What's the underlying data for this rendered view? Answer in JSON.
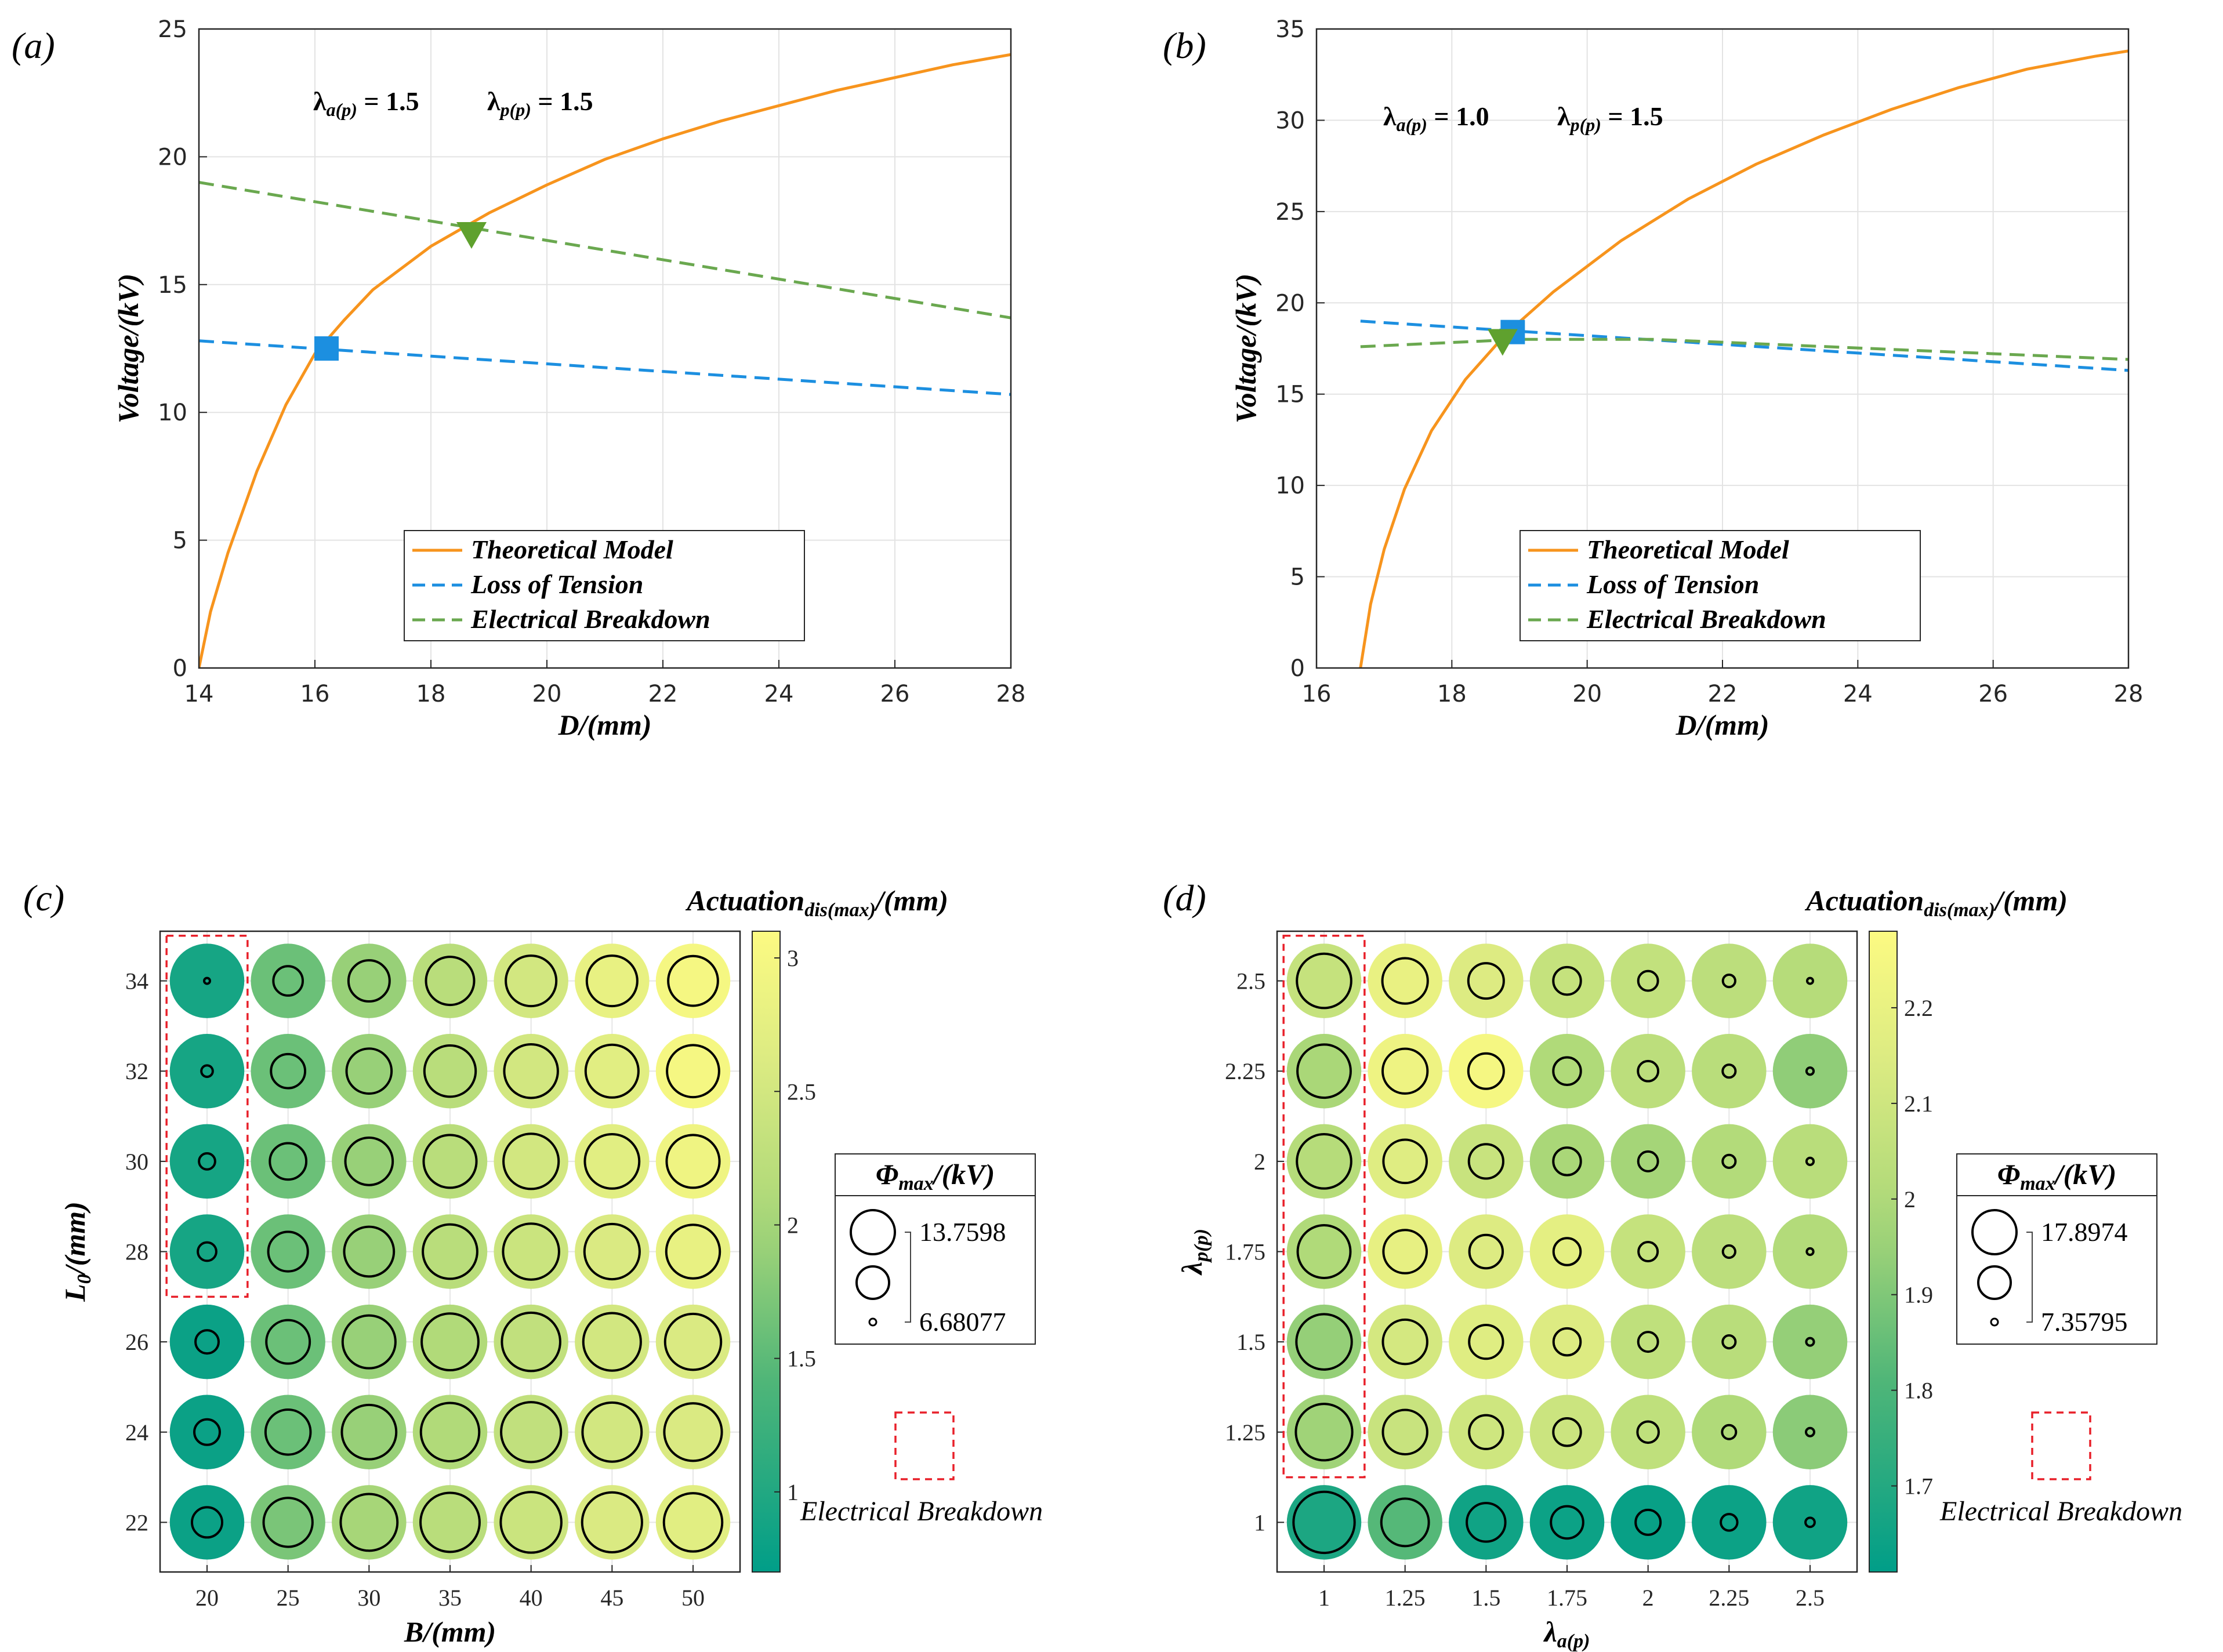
{
  "chart_data": [
    {
      "panel": "(a)",
      "type": "line",
      "xlabel": "D/(mm)",
      "ylabel": "Voltage/(kV)",
      "xlim": [
        14,
        28
      ],
      "ylim": [
        0,
        25
      ],
      "xticks": [
        "14",
        "16",
        "18",
        "20",
        "22",
        "24",
        "26",
        "28"
      ],
      "yticks": [
        "0",
        "5",
        "10",
        "15",
        "20",
        "25"
      ],
      "grid": true,
      "annotation": "λa(p) = 1.5   λp(p) = 1.5",
      "legend_position": "bottom-right",
      "series": [
        {
          "name": "Theoretical Model",
          "color": "#F7941D",
          "style": "solid",
          "x": [
            14.0,
            14.2,
            14.5,
            15.0,
            15.5,
            16.0,
            16.5,
            17.0,
            18.0,
            19.0,
            20.0,
            21.0,
            22.0,
            23.0,
            24.0,
            25.0,
            26.0,
            27.0,
            28.0
          ],
          "y": [
            0,
            2.2,
            4.5,
            7.7,
            10.3,
            12.3,
            13.6,
            14.8,
            16.5,
            17.8,
            18.9,
            19.9,
            20.7,
            21.4,
            22.0,
            22.6,
            23.1,
            23.6,
            24.0
          ]
        },
        {
          "name": "Loss of Tension",
          "color": "#1C8FE0",
          "style": "dashed",
          "x": [
            14,
            28
          ],
          "y": [
            12.8,
            10.7
          ]
        },
        {
          "name": "Electrical Breakdown",
          "color": "#6AA84F",
          "style": "dashed",
          "x": [
            14,
            28
          ],
          "y": [
            19.0,
            13.7
          ]
        }
      ],
      "markers": [
        {
          "shape": "square",
          "color": "#1C8FE0",
          "x": 16.2,
          "y": 12.5
        },
        {
          "shape": "triangle-down",
          "color": "#5FA12E",
          "x": 18.7,
          "y": 16.9
        }
      ]
    },
    {
      "panel": "(b)",
      "type": "line",
      "xlabel": "D/(mm)",
      "ylabel": "Voltage/(kV)",
      "xlim": [
        16,
        28
      ],
      "ylim": [
        0,
        35
      ],
      "xticks": [
        "16",
        "18",
        "20",
        "22",
        "24",
        "26",
        "28"
      ],
      "yticks": [
        "0",
        "5",
        "10",
        "15",
        "20",
        "25",
        "30",
        "35"
      ],
      "grid": true,
      "annotation": "λa(p) = 1.0   λp(p) = 1.5",
      "legend_position": "bottom-right",
      "series": [
        {
          "name": "Theoretical Model",
          "color": "#F7941D",
          "style": "solid",
          "x": [
            16.65,
            16.8,
            17.0,
            17.3,
            17.7,
            18.2,
            18.8,
            19.5,
            20.5,
            21.5,
            22.5,
            23.5,
            24.5,
            25.5,
            26.5,
            27.5,
            28.0
          ],
          "y": [
            0,
            3.5,
            6.5,
            9.8,
            13.0,
            15.8,
            18.3,
            20.6,
            23.4,
            25.7,
            27.6,
            29.2,
            30.6,
            31.8,
            32.8,
            33.5,
            33.8
          ]
        },
        {
          "name": "Loss of Tension",
          "color": "#1C8FE0",
          "style": "dashed",
          "x": [
            16.65,
            28
          ],
          "y": [
            19.0,
            16.3
          ]
        },
        {
          "name": "Electrical Breakdown",
          "color": "#6AA84F",
          "style": "dashed",
          "x": [
            16.65,
            19.0,
            21.0,
            28
          ],
          "y": [
            17.6,
            18.0,
            18.0,
            16.9
          ]
        }
      ],
      "markers": [
        {
          "shape": "square",
          "color": "#1C8FE0",
          "x": 18.9,
          "y": 18.4
        },
        {
          "shape": "triangle-down",
          "color": "#5FA12E",
          "x": 18.75,
          "y": 17.8
        }
      ]
    },
    {
      "panel": "(c)",
      "type": "scatter",
      "xlabel": "B/(mm)",
      "ylabel": "L0/(mm)",
      "x_categories": [
        "20",
        "25",
        "30",
        "35",
        "40",
        "45",
        "50"
      ],
      "y_categories": [
        "22",
        "24",
        "26",
        "28",
        "30",
        "32",
        "34"
      ],
      "colorbar_title": "Actuation_dis(max)/(mm)",
      "colorbar_range": [
        0.7,
        3.1
      ],
      "colorbar_ticks": [
        "1",
        "1.5",
        "2",
        "2.5",
        "3"
      ],
      "size_legend_title": "Φmax/(kV)",
      "size_legend_values": [
        "13.7598",
        "6.68077"
      ],
      "size_range": [
        6.68077,
        13.7598
      ],
      "breakdown_label": "Electrical Breakdown",
      "breakdown_column": "20",
      "breakdown_rows": [
        "28",
        "30",
        "32",
        "34"
      ],
      "color_values": [
        [
          0.8,
          1.7,
          2.0,
          2.2,
          2.4,
          2.6,
          2.7
        ],
        [
          0.8,
          1.6,
          1.9,
          2.1,
          2.3,
          2.5,
          2.6
        ],
        [
          0.8,
          1.6,
          1.9,
          2.1,
          2.3,
          2.5,
          2.6
        ],
        [
          0.9,
          1.6,
          1.9,
          2.2,
          2.4,
          2.6,
          2.8
        ],
        [
          0.9,
          1.6,
          1.9,
          2.2,
          2.5,
          2.7,
          2.9
        ],
        [
          0.9,
          1.6,
          1.9,
          2.2,
          2.5,
          2.7,
          3.0
        ],
        [
          0.9,
          1.6,
          1.9,
          2.2,
          2.5,
          2.8,
          3.0
        ]
      ],
      "voltage_values": [
        [
          9.8,
          12.2,
          13.2,
          13.5,
          13.7,
          13.6,
          13.4
        ],
        [
          9.2,
          11.7,
          12.9,
          13.4,
          13.6,
          13.5,
          13.3
        ],
        [
          8.9,
          11.5,
          12.7,
          13.2,
          13.4,
          13.3,
          13.1
        ],
        [
          8.3,
          11.0,
          12.3,
          12.9,
          13.1,
          13.0,
          12.8
        ],
        [
          8.0,
          10.6,
          12.0,
          12.7,
          13.0,
          12.9,
          12.7
        ],
        [
          7.4,
          10.3,
          11.7,
          12.5,
          12.8,
          12.7,
          12.6
        ],
        [
          6.68,
          9.7,
          11.2,
          12.1,
          12.4,
          12.4,
          12.3
        ]
      ]
    },
    {
      "panel": "(d)",
      "type": "scatter",
      "xlabel": "λa(p)",
      "ylabel": "λp(p)",
      "x_categories": [
        "1",
        "1.25",
        "1.5",
        "1.75",
        "2",
        "2.25",
        "2.5"
      ],
      "y_categories": [
        "1",
        "1.25",
        "1.5",
        "1.75",
        "2",
        "2.25",
        "2.5"
      ],
      "colorbar_title": "Actuation_dis(max)/(mm)",
      "colorbar_range": [
        1.61,
        2.28
      ],
      "colorbar_ticks": [
        "1.7",
        "1.8",
        "1.9",
        "2",
        "2.1",
        "2.2"
      ],
      "size_legend_title": "Φmax/(kV)",
      "size_legend_values": [
        "17.8974",
        "7.35795"
      ],
      "size_range": [
        7.35795,
        17.8974
      ],
      "breakdown_label": "Electrical Breakdown",
      "breakdown_column": "1",
      "breakdown_rows": [
        "1.25",
        "1.5",
        "1.75",
        "2",
        "2.25",
        "2.5"
      ],
      "color_values": [
        [
          1.68,
          1.82,
          1.65,
          1.64,
          1.63,
          1.64,
          1.65
        ],
        [
          1.96,
          2.08,
          2.1,
          2.09,
          2.05,
          2.0,
          1.92
        ],
        [
          1.94,
          2.12,
          2.16,
          2.15,
          2.05,
          2.03,
          1.94
        ],
        [
          2.0,
          2.19,
          2.15,
          2.18,
          2.07,
          2.04,
          2.01
        ],
        [
          2.02,
          2.16,
          2.08,
          1.98,
          1.97,
          2.01,
          2.03
        ],
        [
          1.98,
          2.22,
          2.25,
          2.0,
          2.04,
          2.03,
          1.93
        ],
        [
          2.07,
          2.2,
          2.15,
          2.07,
          2.06,
          2.04,
          2.02
        ]
      ],
      "voltage_values": [
        [
          17.9,
          15.3,
          13.6,
          12.4,
          11.0,
          9.4,
          8.0
        ],
        [
          17.0,
          14.7,
          12.7,
          11.5,
          10.3,
          8.9,
          7.8
        ],
        [
          16.8,
          14.7,
          12.7,
          11.4,
          10.0,
          8.7,
          7.7
        ],
        [
          16.3,
          14.5,
          12.6,
          11.4,
          9.9,
          8.6,
          7.5
        ],
        [
          16.6,
          14.5,
          12.8,
          11.5,
          10.0,
          8.7,
          7.6
        ],
        [
          16.4,
          14.8,
          13.0,
          11.5,
          10.1,
          8.7,
          7.6
        ],
        [
          16.6,
          14.9,
          13.0,
          11.5,
          10.0,
          8.6,
          7.36
        ]
      ]
    }
  ],
  "labels": {
    "panel_a": "(a)",
    "panel_b": "(b)",
    "panel_c": "(c)",
    "panel_d": "(d)"
  }
}
